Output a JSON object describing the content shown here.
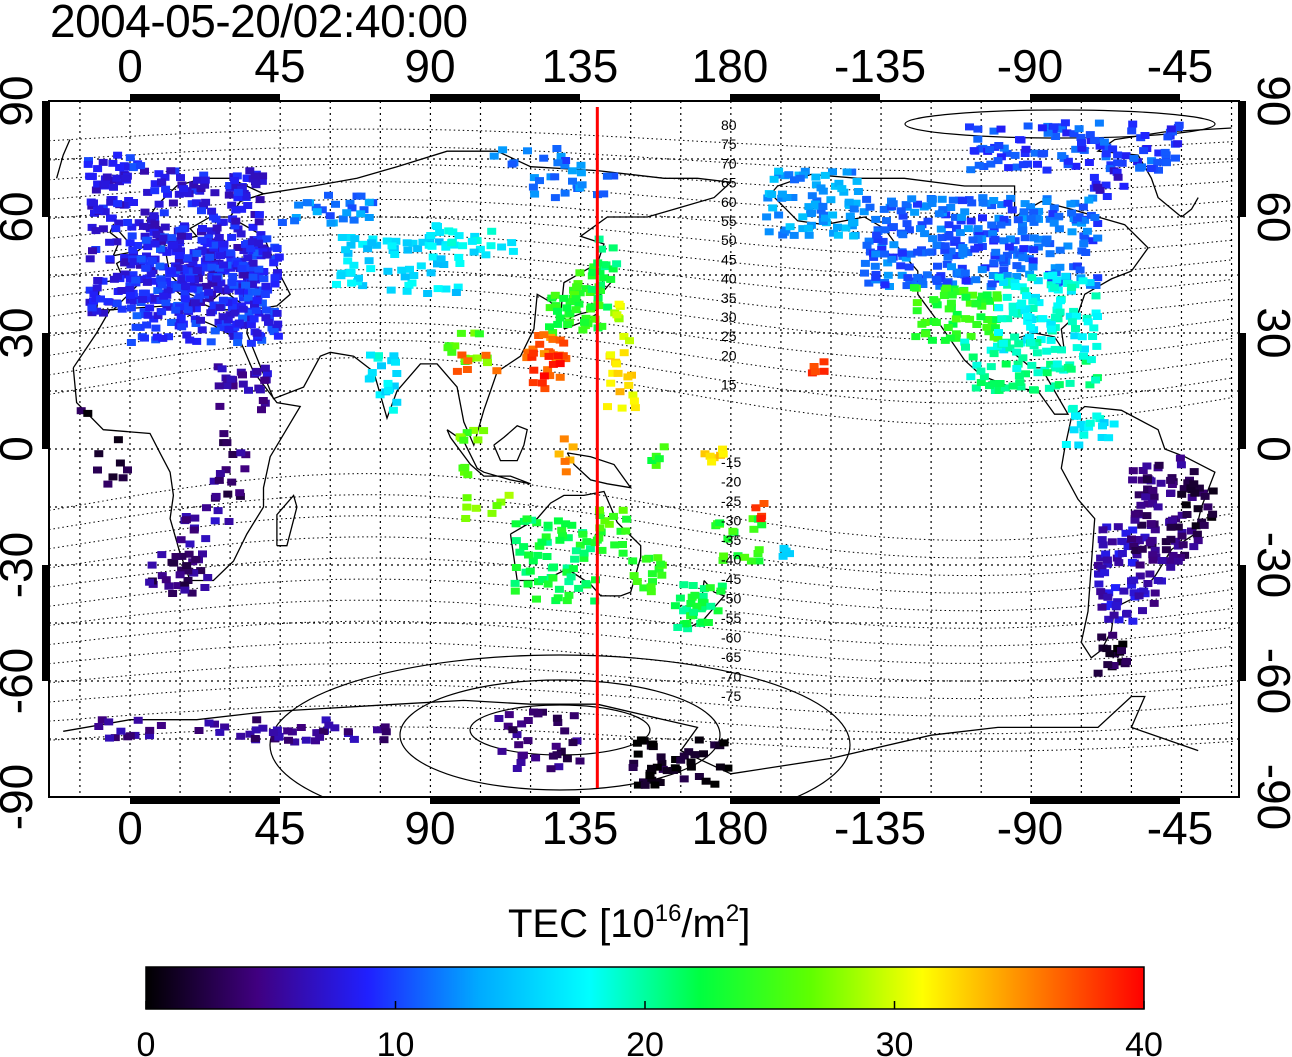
{
  "timestamp": "2004-05-20/02:40:00",
  "map": {
    "lon_ticks": [
      "0",
      "45",
      "90",
      "135",
      "180",
      "-135",
      "-90",
      "-45"
    ],
    "lat_ticks": [
      "90",
      "60",
      "30",
      "0",
      "-30",
      "-60",
      "-90"
    ],
    "magnetic_lat_labels_north": [
      "80",
      "75",
      "70",
      "65",
      "60",
      "55",
      "50",
      "45",
      "40",
      "35",
      "30",
      "25",
      "20",
      "15"
    ],
    "magnetic_lat_labels_south": [
      "-15",
      "-20",
      "-25",
      "-30",
      "-35",
      "-40",
      "-45",
      "-50",
      "-55",
      "-60",
      "-65",
      "-70",
      "-75"
    ],
    "meridian_marker": {
      "longitude": 140,
      "color": "#ff0000"
    }
  },
  "colorbar": {
    "title_prefix": "TEC  [10",
    "title_exp1": "16",
    "title_mid": "/m",
    "title_exp2": "2",
    "title_suffix": "]",
    "ticks": [
      "0",
      "10",
      "20",
      "30",
      "40"
    ],
    "range": [
      0,
      40
    ],
    "colors": [
      "#000000",
      "#400080",
      "#2020ff",
      "#00aaff",
      "#00ffff",
      "#00ff40",
      "#60ff00",
      "#ffff00",
      "#ff8000",
      "#ff0000"
    ]
  }
}
